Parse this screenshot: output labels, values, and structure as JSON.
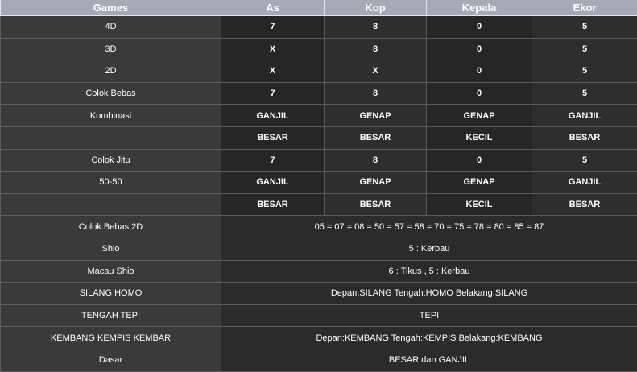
{
  "table": {
    "header": [
      "Games",
      "As",
      "Kop",
      "Kepala",
      "Ekor"
    ],
    "rows": [
      [
        "4D",
        "7",
        "8",
        "0",
        "5"
      ],
      [
        "3D",
        "X",
        "8",
        "0",
        "5"
      ],
      [
        "2D",
        "X",
        "X",
        "0",
        "5"
      ],
      [
        "Colok Bebas",
        "7",
        "8",
        "0",
        "5"
      ],
      [
        "Kombinasi",
        "GANJIL",
        "GENAP",
        "GENAP",
        "GANJIL"
      ],
      [
        null,
        "BESAR",
        "BESAR",
        "KECIL",
        "BESAR"
      ],
      [
        "Colok Jitu",
        "7",
        "8",
        "0",
        "5"
      ],
      [
        "50-50",
        "GANJIL",
        "GENAP",
        "GENAP",
        "GANJIL"
      ],
      [
        null,
        "BESAR",
        "BESAR",
        "KECIL",
        "BESAR"
      ],
      [
        "Colok Bebas 2D",
        "05 = 07 = 08 = 50 = 57 = 58 = 70 = 75 = 78 = 80 = 85 = 87"
      ],
      [
        "Shio",
        "5 : Kerbau"
      ],
      [
        "Macau Shio",
        "6 : Tikus , 5 : Kerbau"
      ],
      [
        "SILANG HOMO",
        "Depan:SILANG Tengah:HOMO Belakang:SILANG"
      ],
      [
        "TENGAH TEPI",
        "TEPI"
      ],
      [
        "KEMBANG KEMPIS KEMBAR",
        "Depan:KEMBANG Tengah:KEMPIS Belakang:KEMBANG"
      ],
      [
        "Dasar",
        "BESAR dan GANJIL"
      ]
    ]
  }
}
